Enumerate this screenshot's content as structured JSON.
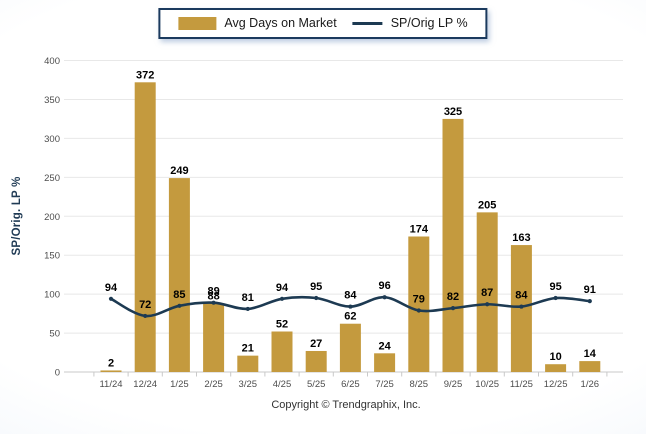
{
  "page": {
    "background_center": "#ffffff",
    "background_edge": "#e3ecf6"
  },
  "legend": {
    "items": [
      {
        "label": "Avg Days on Market",
        "type": "bar",
        "color": "#c49a3e"
      },
      {
        "label": "SP/Orig LP %",
        "type": "line",
        "color": "#1d3a52"
      }
    ]
  },
  "footer": {
    "text": "Copyright © Trendgraphix, Inc."
  },
  "chart_data": {
    "type": "bar+line",
    "title": "",
    "xlabel": "",
    "ylabel": "SP/Orig. LP %",
    "ylim": [
      0,
      400
    ],
    "ytick_step": 50,
    "grid": true,
    "legend_position": "top-center",
    "value_labels": true,
    "categories": [
      "11/24",
      "12/24",
      "1/25",
      "2/25",
      "3/25",
      "4/25",
      "5/25",
      "6/25",
      "7/25",
      "8/25",
      "9/25",
      "10/25",
      "11/25",
      "12/25",
      "1/26"
    ],
    "series": [
      {
        "name": "Avg Days on Market",
        "type": "bar",
        "color": "#c49a3e",
        "values": [
          2,
          372,
          249,
          88,
          21,
          52,
          27,
          62,
          24,
          174,
          325,
          205,
          163,
          10,
          14
        ]
      },
      {
        "name": "SP/Orig LP %",
        "type": "line",
        "color": "#1d3a52",
        "values": [
          94,
          72,
          85,
          89,
          81,
          94,
          95,
          84,
          96,
          79,
          82,
          87,
          84,
          95,
          91
        ]
      }
    ],
    "colors": {
      "grid_line": "#e8e8e8",
      "axis_line": "#c9c9c9",
      "tick_label": "#4d4d4d",
      "value_label": "#000000"
    }
  }
}
